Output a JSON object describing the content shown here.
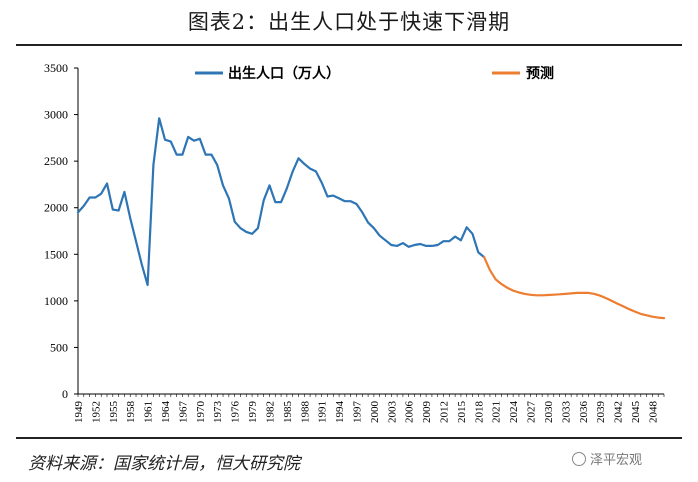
{
  "title": "图表2：出生人口处于快速下滑期",
  "source": "资料来源：国家统计局，恒大研究院",
  "watermark": "泽平宏观",
  "watermark_icon": "wechat-icon",
  "colors": {
    "actual": "#2E75B6",
    "forecast": "#ED7D31",
    "axis": "#000000"
  },
  "chart_data": {
    "type": "line",
    "title": "图表2：出生人口处于快速下滑期",
    "ylim": [
      0,
      3500
    ],
    "yticks": [
      0,
      500,
      1000,
      1500,
      2000,
      2500,
      3000,
      3500
    ],
    "xlim": [
      1949,
      2050
    ],
    "xticks": [
      "1949",
      "1952",
      "1955",
      "1958",
      "1961",
      "1964",
      "1967",
      "1970",
      "1973",
      "1976",
      "1979",
      "1982",
      "1985",
      "1988",
      "1991",
      "1994",
      "1997",
      "2000",
      "2003",
      "2006",
      "2009",
      "2012",
      "2015",
      "2018",
      "2021",
      "2024",
      "2027",
      "2030",
      "2033",
      "2036",
      "2039",
      "2042",
      "2045",
      "2048"
    ],
    "legend_position": "top",
    "grid": false,
    "series": [
      {
        "name": "出生人口（万人）",
        "color": "#2E75B6",
        "x": [
          1949,
          1950,
          1951,
          1952,
          1953,
          1954,
          1955,
          1956,
          1957,
          1958,
          1959,
          1960,
          1961,
          1962,
          1963,
          1964,
          1965,
          1966,
          1967,
          1968,
          1969,
          1970,
          1971,
          1972,
          1973,
          1974,
          1975,
          1976,
          1977,
          1978,
          1979,
          1980,
          1981,
          1982,
          1983,
          1984,
          1985,
          1986,
          1987,
          1988,
          1989,
          1990,
          1991,
          1992,
          1993,
          1994,
          1995,
          1996,
          1997,
          1998,
          1999,
          2000,
          2001,
          2002,
          2003,
          2004,
          2005,
          2006,
          2007,
          2008,
          2009,
          2010,
          2011,
          2012,
          2013,
          2014,
          2015,
          2016,
          2017,
          2018,
          2019
        ],
        "values": [
          1950,
          2020,
          2110,
          2110,
          2150,
          2260,
          1980,
          1970,
          2170,
          1890,
          1640,
          1390,
          1170,
          2460,
          2960,
          2730,
          2710,
          2570,
          2570,
          2760,
          2720,
          2740,
          2570,
          2570,
          2460,
          2240,
          2100,
          1850,
          1780,
          1740,
          1720,
          1780,
          2080,
          2240,
          2060,
          2060,
          2210,
          2390,
          2530,
          2470,
          2420,
          2390,
          2270,
          2120,
          2130,
          2100,
          2070,
          2070,
          2040,
          1950,
          1840,
          1780,
          1700,
          1650,
          1600,
          1590,
          1620,
          1580,
          1600,
          1610,
          1590,
          1590,
          1600,
          1640,
          1640,
          1690,
          1650,
          1790,
          1720,
          1520,
          1470
        ]
      },
      {
        "name": "预测",
        "color": "#ED7D31",
        "x": [
          2019,
          2020,
          2021,
          2022,
          2023,
          2024,
          2025,
          2026,
          2027,
          2028,
          2029,
          2030,
          2031,
          2032,
          2033,
          2034,
          2035,
          2036,
          2037,
          2038,
          2039,
          2040,
          2041,
          2042,
          2043,
          2044,
          2045,
          2046,
          2047,
          2048,
          2049,
          2050
        ],
        "values": [
          1470,
          1330,
          1230,
          1180,
          1140,
          1110,
          1090,
          1075,
          1065,
          1060,
          1060,
          1063,
          1066,
          1070,
          1075,
          1080,
          1085,
          1087,
          1085,
          1075,
          1055,
          1030,
          1000,
          970,
          940,
          910,
          885,
          860,
          845,
          830,
          820,
          815
        ]
      }
    ]
  }
}
